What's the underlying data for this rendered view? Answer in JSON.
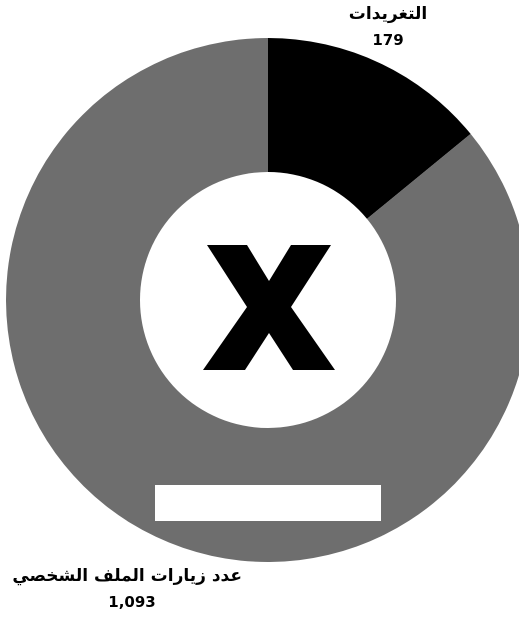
{
  "chart_data": {
    "type": "pie",
    "donut": true,
    "start_angle_deg": 0,
    "direction": "clockwise",
    "slices": [
      {
        "label": "التغريدات",
        "value": 179,
        "value_text": "179",
        "color": "#000000"
      },
      {
        "label": "عدد زيارات الملف الشخصي",
        "value": 1093,
        "value_text": "1,093",
        "color": "#6e6e6e"
      }
    ],
    "center_logo": "x-logo"
  }
}
